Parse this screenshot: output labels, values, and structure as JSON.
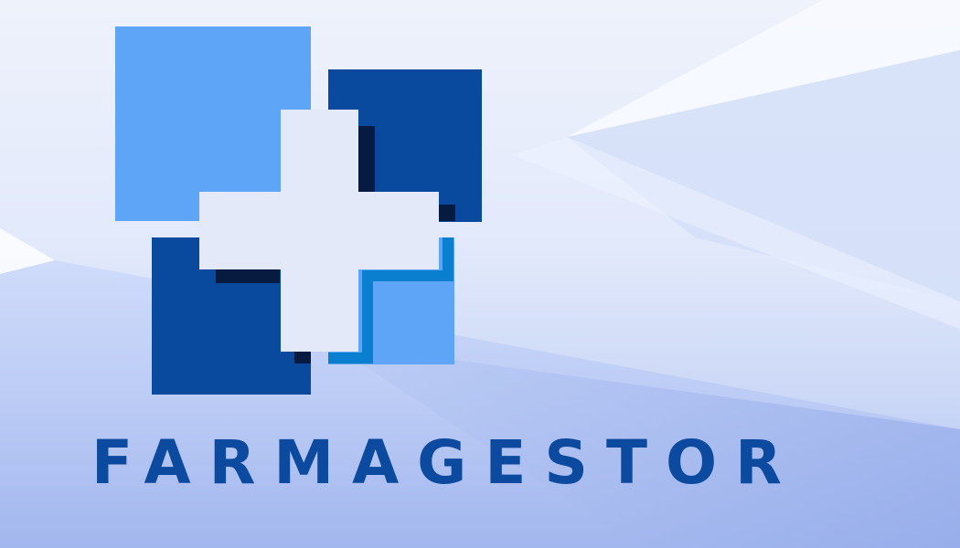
{
  "brand": {
    "name": "FARMAGESTOR",
    "logo_icon": "pharmacy-cross-squares-icon"
  },
  "colors": {
    "brand_text": "#0b4a9e",
    "square_light_blue": "#5ea5f7",
    "square_dark_blue": "#0a4a9e",
    "cross_fill": "#e3e9f8",
    "shadow_navy": "#071a40",
    "accent_blue": "#0a7fd0"
  }
}
